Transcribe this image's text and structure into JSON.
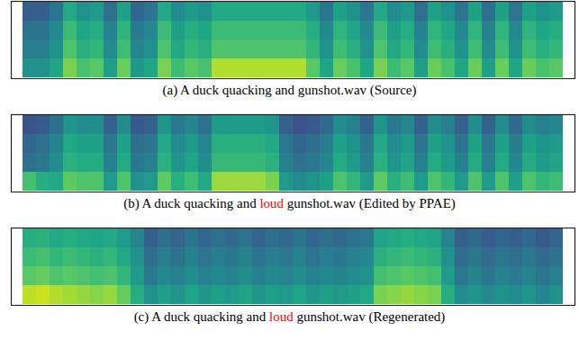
{
  "chart_data": [
    {
      "type": "heatmap",
      "caption": [
        {
          "text": "(a) A duck quacking and gunshot.wav (Source)"
        }
      ],
      "color": "viridis",
      "zlim": [
        0,
        1
      ],
      "tick_labels": false,
      "cells": [
        [
          0.3,
          0.3,
          0.39,
          0.6,
          0.51,
          0.54,
          0.36,
          0.57,
          0.33,
          0.39,
          0.6,
          0.48,
          0.54,
          0.51,
          0.6,
          0.6,
          0.6,
          0.6,
          0.6,
          0.6,
          0.6,
          0.54,
          0.39,
          0.57,
          0.51,
          0.39,
          0.6,
          0.48,
          0.54,
          0.36,
          0.57,
          0.51,
          0.39,
          0.57,
          0.36,
          0.57,
          0.39,
          0.57,
          0.51,
          0.54
        ],
        [
          0.38,
          0.38,
          0.47,
          0.68,
          0.59,
          0.62,
          0.44,
          0.65,
          0.41,
          0.47,
          0.68,
          0.56,
          0.62,
          0.59,
          0.68,
          0.68,
          0.68,
          0.68,
          0.68,
          0.68,
          0.68,
          0.62,
          0.47,
          0.65,
          0.59,
          0.47,
          0.68,
          0.56,
          0.62,
          0.44,
          0.65,
          0.59,
          0.47,
          0.65,
          0.44,
          0.65,
          0.47,
          0.65,
          0.59,
          0.62
        ],
        [
          0.42,
          0.42,
          0.51,
          0.72,
          0.63,
          0.66,
          0.48,
          0.69,
          0.45,
          0.51,
          0.72,
          0.6,
          0.66,
          0.63,
          0.72,
          0.72,
          0.72,
          0.72,
          0.72,
          0.72,
          0.72,
          0.66,
          0.51,
          0.69,
          0.63,
          0.51,
          0.72,
          0.6,
          0.66,
          0.48,
          0.69,
          0.63,
          0.51,
          0.69,
          0.48,
          0.69,
          0.51,
          0.69,
          0.63,
          0.66
        ],
        [
          0.5,
          0.5,
          0.59,
          0.8,
          0.71,
          0.74,
          0.56,
          0.77,
          0.53,
          0.59,
          0.8,
          0.68,
          0.74,
          0.71,
          0.88,
          0.88,
          0.88,
          0.88,
          0.88,
          0.88,
          0.88,
          0.74,
          0.59,
          0.77,
          0.71,
          0.59,
          0.8,
          0.68,
          0.74,
          0.56,
          0.77,
          0.71,
          0.59,
          0.77,
          0.56,
          0.77,
          0.59,
          0.77,
          0.71,
          0.74
        ]
      ]
    },
    {
      "type": "heatmap",
      "caption": [
        {
          "text": "(b) A duck quacking and "
        },
        {
          "text": "loud",
          "color": "red"
        },
        {
          "text": " gunshot.wav (Edited by PPAE)"
        }
      ],
      "color": "viridis",
      "zlim": [
        0,
        1
      ],
      "tick_labels": false,
      "cells": [
        [
          0.25,
          0.28,
          0.37,
          0.52,
          0.49,
          0.49,
          0.31,
          0.49,
          0.28,
          0.31,
          0.52,
          0.4,
          0.46,
          0.37,
          0.55,
          0.55,
          0.55,
          0.55,
          0.52,
          0.31,
          0.25,
          0.28,
          0.34,
          0.49,
          0.43,
          0.31,
          0.52,
          0.4,
          0.46,
          0.31,
          0.49,
          0.43,
          0.31,
          0.49,
          0.31,
          0.49,
          0.34,
          0.49,
          0.43,
          0.46
        ],
        [
          0.33,
          0.36,
          0.45,
          0.6,
          0.57,
          0.57,
          0.39,
          0.57,
          0.36,
          0.39,
          0.6,
          0.48,
          0.54,
          0.45,
          0.63,
          0.63,
          0.63,
          0.63,
          0.6,
          0.39,
          0.33,
          0.36,
          0.42,
          0.57,
          0.51,
          0.39,
          0.6,
          0.48,
          0.54,
          0.39,
          0.57,
          0.51,
          0.39,
          0.57,
          0.39,
          0.57,
          0.42,
          0.57,
          0.51,
          0.54
        ],
        [
          0.37,
          0.4,
          0.49,
          0.64,
          0.61,
          0.61,
          0.43,
          0.61,
          0.4,
          0.43,
          0.64,
          0.52,
          0.58,
          0.49,
          0.67,
          0.67,
          0.67,
          0.67,
          0.64,
          0.43,
          0.37,
          0.4,
          0.46,
          0.61,
          0.55,
          0.43,
          0.64,
          0.52,
          0.58,
          0.43,
          0.61,
          0.55,
          0.43,
          0.61,
          0.43,
          0.61,
          0.46,
          0.61,
          0.55,
          0.58
        ],
        [
          0.7,
          0.62,
          0.6,
          0.75,
          0.72,
          0.72,
          0.54,
          0.72,
          0.51,
          0.54,
          0.75,
          0.63,
          0.69,
          0.6,
          0.85,
          0.85,
          0.85,
          0.85,
          0.8,
          0.54,
          0.48,
          0.51,
          0.57,
          0.72,
          0.66,
          0.54,
          0.75,
          0.63,
          0.69,
          0.54,
          0.72,
          0.66,
          0.54,
          0.72,
          0.54,
          0.72,
          0.57,
          0.72,
          0.66,
          0.69
        ]
      ]
    },
    {
      "type": "heatmap",
      "caption": [
        {
          "text": "(c) A duck quacking and "
        },
        {
          "text": "loud",
          "color": "red"
        },
        {
          "text": " gunshot.wav (Regenerated)"
        }
      ],
      "color": "viridis",
      "zlim": [
        0,
        1
      ],
      "tick_labels": false,
      "cells": [
        [
          0.62,
          0.64,
          0.6,
          0.62,
          0.6,
          0.58,
          0.6,
          0.55,
          0.45,
          0.3,
          0.36,
          0.32,
          0.38,
          0.33,
          0.36,
          0.34,
          0.38,
          0.32,
          0.36,
          0.34,
          0.38,
          0.33,
          0.36,
          0.34,
          0.37,
          0.4,
          0.58,
          0.6,
          0.62,
          0.6,
          0.58,
          0.45,
          0.3,
          0.34,
          0.29,
          0.33,
          0.3,
          0.34,
          0.28,
          0.32
        ],
        [
          0.68,
          0.7,
          0.66,
          0.68,
          0.66,
          0.64,
          0.66,
          0.6,
          0.5,
          0.35,
          0.42,
          0.38,
          0.44,
          0.39,
          0.42,
          0.4,
          0.44,
          0.38,
          0.42,
          0.4,
          0.44,
          0.39,
          0.42,
          0.4,
          0.43,
          0.46,
          0.64,
          0.66,
          0.68,
          0.66,
          0.64,
          0.5,
          0.35,
          0.4,
          0.35,
          0.39,
          0.36,
          0.4,
          0.34,
          0.38
        ],
        [
          0.74,
          0.76,
          0.72,
          0.74,
          0.72,
          0.7,
          0.72,
          0.66,
          0.55,
          0.4,
          0.47,
          0.43,
          0.49,
          0.44,
          0.47,
          0.45,
          0.49,
          0.43,
          0.47,
          0.45,
          0.49,
          0.44,
          0.47,
          0.45,
          0.48,
          0.51,
          0.7,
          0.72,
          0.74,
          0.72,
          0.7,
          0.55,
          0.4,
          0.45,
          0.4,
          0.44,
          0.41,
          0.45,
          0.39,
          0.43
        ],
        [
          0.9,
          0.92,
          0.88,
          0.86,
          0.84,
          0.82,
          0.84,
          0.76,
          0.62,
          0.5,
          0.56,
          0.52,
          0.58,
          0.53,
          0.56,
          0.54,
          0.58,
          0.52,
          0.56,
          0.54,
          0.58,
          0.53,
          0.56,
          0.54,
          0.57,
          0.6,
          0.8,
          0.82,
          0.84,
          0.82,
          0.8,
          0.62,
          0.48,
          0.52,
          0.47,
          0.51,
          0.48,
          0.52,
          0.46,
          0.5
        ]
      ]
    }
  ]
}
